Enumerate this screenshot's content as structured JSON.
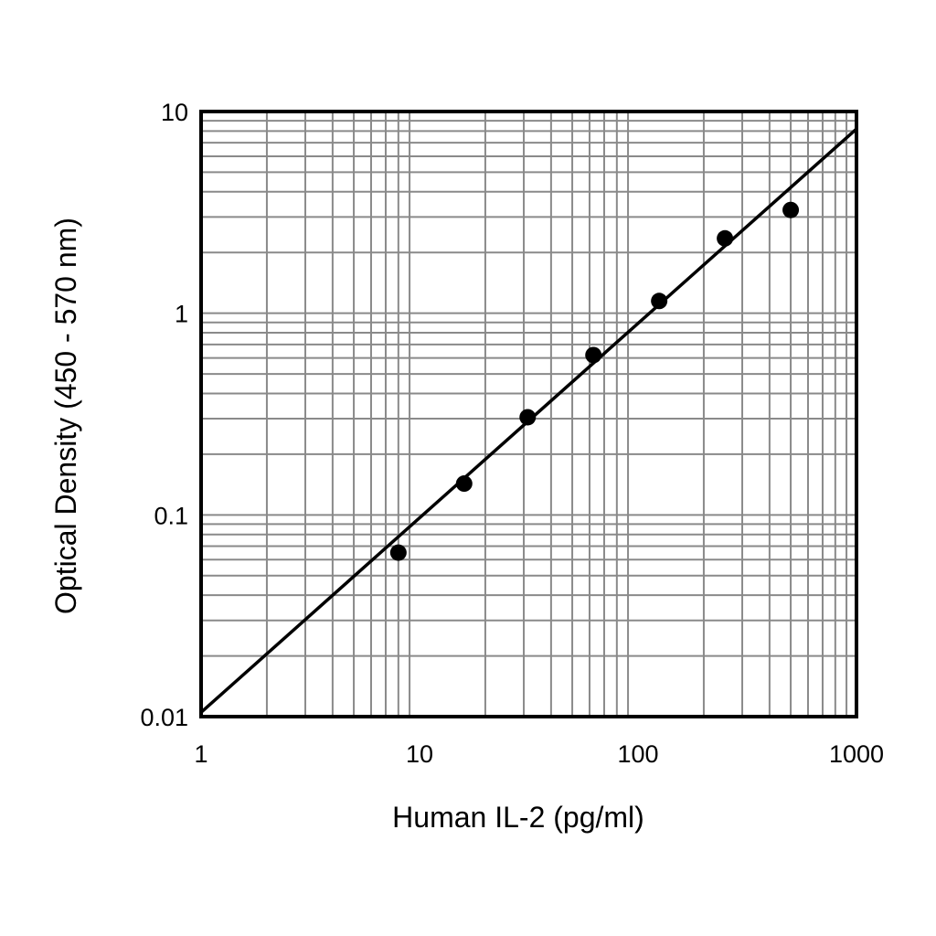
{
  "chart_data": {
    "type": "scatter",
    "title": "",
    "xlabel": "Human IL-2 (pg/ml)",
    "ylabel": "Optical Density (450 - 570 nm)",
    "x_scale": "log",
    "y_scale": "log",
    "xlim": [
      1,
      1000
    ],
    "ylim": [
      0.01,
      10
    ],
    "x_ticks": [
      1,
      10,
      100,
      1000
    ],
    "y_ticks": [
      0.01,
      0.1,
      1,
      10
    ],
    "x_tick_labels": [
      "1",
      "10",
      "100",
      "1000"
    ],
    "y_tick_labels": [
      "0.01",
      "0.1",
      "1",
      "10"
    ],
    "grid": true,
    "series": [
      {
        "x": [
          8,
          16,
          31.25,
          62.5,
          125,
          250,
          500
        ],
        "y": [
          0.065,
          0.143,
          0.305,
          0.62,
          1.15,
          2.35,
          3.25
        ]
      }
    ],
    "fit_line": {
      "x": [
        1,
        1000
      ],
      "y": [
        0.0105,
        8.2
      ]
    },
    "colors": {
      "points": "#000000",
      "grid": "#8a8a8a",
      "line": "#000000"
    }
  }
}
